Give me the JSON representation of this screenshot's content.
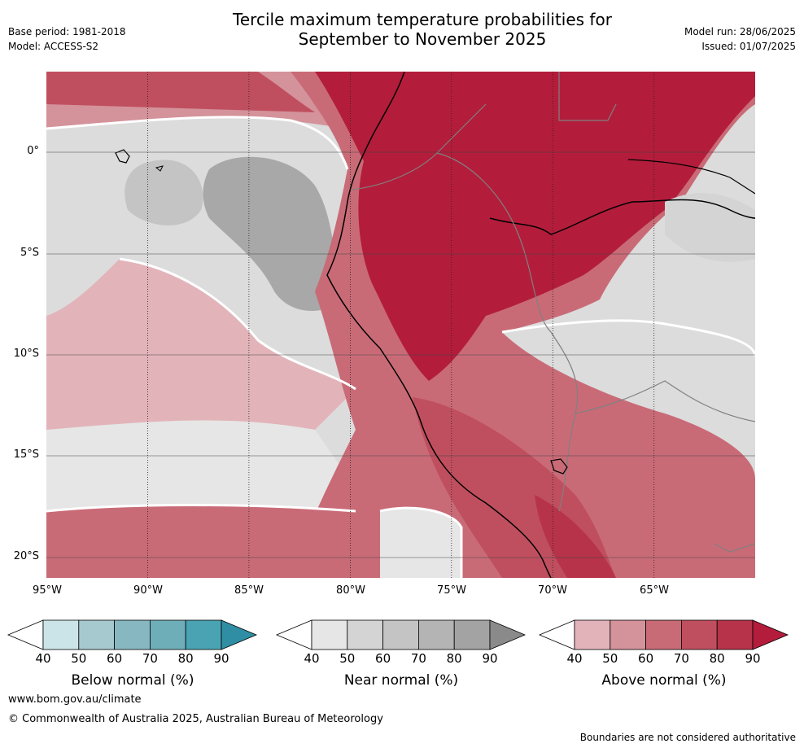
{
  "header": {
    "title_line1": "Tercile maximum temperature probabilities for",
    "title_line2": "September to November 2025",
    "base_period": "Base period: 1981-2018",
    "model": "Model: ACCESS-S2",
    "model_run": "Model run: 28/06/2025",
    "issued": "Issued: 01/07/2025"
  },
  "map": {
    "longitude_labels": [
      "95°W",
      "90°W",
      "85°W",
      "80°W",
      "75°W",
      "70°W",
      "65°W"
    ],
    "latitude_labels": [
      "0°",
      "5°S",
      "10°S",
      "15°S",
      "20°S"
    ]
  },
  "colorbars": [
    {
      "title": "Below normal (%)",
      "ticks": [
        "40",
        "50",
        "60",
        "70",
        "80",
        "90"
      ],
      "colors": [
        "#ffffff",
        "#cbe4e8",
        "#a6c9cf",
        "#87b7c1",
        "#6eaeb9",
        "#4aa3b2",
        "#2f8ea3"
      ]
    },
    {
      "title": "Near normal (%)",
      "ticks": [
        "40",
        "50",
        "60",
        "70",
        "80",
        "90"
      ],
      "colors": [
        "#ffffff",
        "#e6e6e6",
        "#d4d4d4",
        "#c4c4c4",
        "#b4b4b4",
        "#a3a3a3",
        "#8a8a8a"
      ]
    },
    {
      "title": "Above normal (%)",
      "ticks": [
        "40",
        "50",
        "60",
        "70",
        "80",
        "90"
      ],
      "colors": [
        "#ffffff",
        "#e2b4ba",
        "#d4929a",
        "#c96b77",
        "#bf4f5f",
        "#b7334a",
        "#b31d3b"
      ]
    }
  ],
  "footer": {
    "website": "www.bom.gov.au/climate",
    "copyright": "© Commonwealth of Australia 2025, Australian Bureau of Meteorology",
    "disclaimer": "Boundaries are not considered authoritative"
  }
}
